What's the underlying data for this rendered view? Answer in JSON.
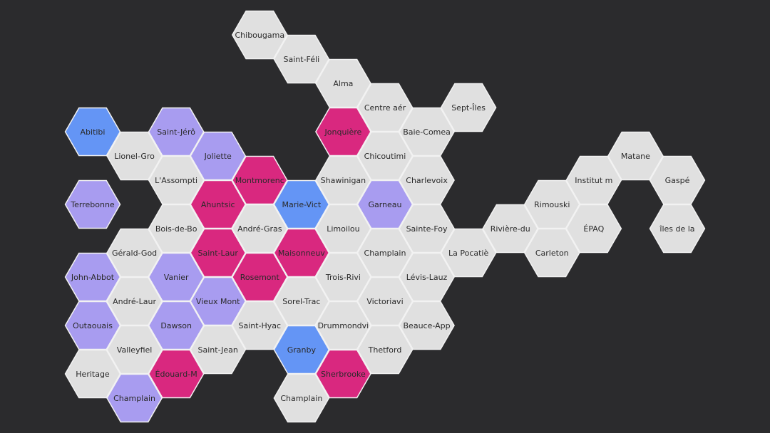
{
  "nodes": [
    {
      "label": "Abitibi",
      "color": "#6495f5"
    },
    {
      "label": "Terrebonne",
      "color": "#a89cf0"
    },
    {
      "label": "John-Abbot",
      "color": "#a89cf0"
    },
    {
      "label": "Outaouais",
      "color": "#a89cf0"
    },
    {
      "label": "Heritage",
      "color": "#e0e0e0"
    },
    {
      "label": "Lionel-Gro",
      "color": "#e0e0e0"
    },
    {
      "label": "Gérald-God",
      "color": "#e0e0e0"
    },
    {
      "label": "André-Laur",
      "color": "#e0e0e0"
    },
    {
      "label": "Valleyfiel",
      "color": "#e0e0e0"
    },
    {
      "label": "Champlain",
      "color": "#a89cf0"
    },
    {
      "label": "Saint-Jérô",
      "color": "#a89cf0"
    },
    {
      "label": "L'Assompti",
      "color": "#e0e0e0"
    },
    {
      "label": "Bois-de-Bo",
      "color": "#e0e0e0"
    },
    {
      "label": "Vanier",
      "color": "#a89cf0"
    },
    {
      "label": "Dawson",
      "color": "#a89cf0"
    },
    {
      "label": "Édouard-M",
      "color": "#d9287f"
    },
    {
      "label": "Joliette",
      "color": "#a89cf0"
    },
    {
      "label": "Ahuntsic",
      "color": "#d9287f"
    },
    {
      "label": "Saint-Laur",
      "color": "#d9287f"
    },
    {
      "label": "Vieux Mont",
      "color": "#a89cf0"
    },
    {
      "label": "Saint-Jean",
      "color": "#e0e0e0"
    },
    {
      "label": "Chibougama",
      "color": "#e0e0e0"
    },
    {
      "label": "Montmorenc",
      "color": "#d9287f"
    },
    {
      "label": "André-Gras",
      "color": "#e0e0e0"
    },
    {
      "label": "Rosemont",
      "color": "#d9287f"
    },
    {
      "label": "Saint-Hyac",
      "color": "#e0e0e0"
    },
    {
      "label": "Saint-Féli",
      "color": "#e0e0e0"
    },
    {
      "label": "Marie-Vict",
      "color": "#6495f5"
    },
    {
      "label": "Maisonneuv",
      "color": "#d9287f"
    },
    {
      "label": "Sorel-Trac",
      "color": "#e0e0e0"
    },
    {
      "label": "Granby",
      "color": "#6495f5"
    },
    {
      "label": "Champlain",
      "color": "#e0e0e0"
    },
    {
      "label": "Alma",
      "color": "#e0e0e0"
    },
    {
      "label": "Jonquière",
      "color": "#d9287f"
    },
    {
      "label": "Shawinigan",
      "color": "#e0e0e0"
    },
    {
      "label": "Limoilou",
      "color": "#e0e0e0"
    },
    {
      "label": "Trois-Rivi",
      "color": "#e0e0e0"
    },
    {
      "label": "Drummondvi",
      "color": "#e0e0e0"
    },
    {
      "label": "Sherbrooke",
      "color": "#d9287f"
    },
    {
      "label": "Centre aér",
      "color": "#e0e0e0"
    },
    {
      "label": "Chicoutimi",
      "color": "#e0e0e0"
    },
    {
      "label": "Garneau",
      "color": "#a89cf0"
    },
    {
      "label": "Champlain",
      "color": "#e0e0e0"
    },
    {
      "label": "Victoriavi",
      "color": "#e0e0e0"
    },
    {
      "label": "Thetford",
      "color": "#e0e0e0"
    },
    {
      "label": "Baie-Comea",
      "color": "#e0e0e0"
    },
    {
      "label": "Charlevoix",
      "color": "#e0e0e0"
    },
    {
      "label": "Sainte-Foy",
      "color": "#e0e0e0"
    },
    {
      "label": "Lévis-Lauz",
      "color": "#e0e0e0"
    },
    {
      "label": "Beauce-App",
      "color": "#e0e0e0"
    },
    {
      "label": "Sept-Îles",
      "color": "#e0e0e0"
    },
    {
      "label": "La Pocatiè",
      "color": "#e0e0e0"
    },
    {
      "label": "Rivière-du",
      "color": "#e0e0e0"
    },
    {
      "label": "Rimouski",
      "color": "#e0e0e0"
    },
    {
      "label": "Carleton",
      "color": "#e0e0e0"
    },
    {
      "label": "Institut m",
      "color": "#e0e0e0"
    },
    {
      "label": "ÉPAQ",
      "color": "#e0e0e0"
    },
    {
      "label": "Matane",
      "color": "#e0e0e0"
    },
    {
      "label": "Gaspé",
      "color": "#e0e0e0"
    },
    {
      "label": "îles de la",
      "color": "#e0e0e0"
    }
  ]
}
